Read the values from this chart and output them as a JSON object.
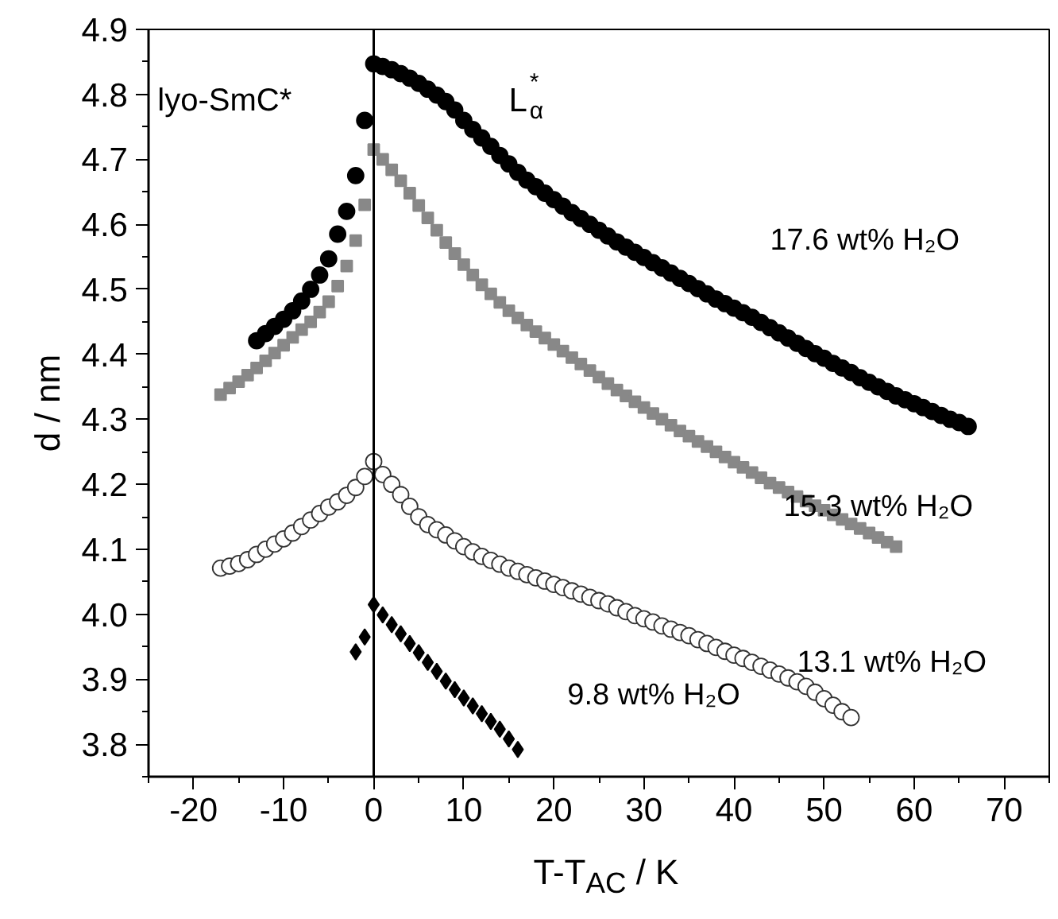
{
  "chart_data": {
    "type": "scatter",
    "xlabel": "T-T$_{AC}$ / K",
    "ylabel": "d / nm",
    "xlim": [
      -25,
      75
    ],
    "xticks": [
      -20,
      -10,
      0,
      10,
      20,
      30,
      40,
      50,
      60,
      70
    ],
    "ylim": [
      3.75,
      4.9
    ],
    "yticks": [
      3.8,
      3.9,
      {
        "value": 4.0,
        "label": "4.0"
      },
      4.1,
      4.2,
      4.3,
      4.4,
      4.5,
      4.6,
      4.7,
      4.8,
      4.9
    ],
    "grid": false,
    "ref_lines": [
      {
        "axis": "x",
        "value": 0,
        "color": "#000000"
      }
    ],
    "annotations": [
      "lyo-SmC*",
      "L$_{α}$$^{*}$"
    ],
    "series": [
      {
        "name": "17.6 wt% H₂O",
        "color": "#000000",
        "marker": "circle",
        "x": [
          -13,
          -12,
          -11,
          -10,
          -9,
          -8,
          -7,
          -6,
          -5,
          -4,
          -3,
          -2,
          -1,
          0,
          1,
          2,
          3,
          4,
          5,
          6,
          7,
          8,
          9,
          10,
          11,
          12,
          13,
          14,
          15,
          16,
          17,
          18,
          19,
          20,
          21,
          22,
          23,
          24,
          25,
          26,
          27,
          28,
          29,
          30,
          31,
          32,
          33,
          34,
          35,
          36,
          37,
          38,
          39,
          40,
          41,
          42,
          43,
          44,
          45,
          46,
          47,
          48,
          49,
          50,
          51,
          52,
          53,
          54,
          55,
          56,
          57,
          58,
          59,
          60,
          61,
          62,
          63,
          64,
          65,
          66
        ],
        "values": [
          4.421,
          4.432,
          4.443,
          4.454,
          4.467,
          4.482,
          4.5,
          4.522,
          4.547,
          4.585,
          4.62,
          4.675,
          4.76,
          4.847,
          4.843,
          4.838,
          4.832,
          4.825,
          4.817,
          4.808,
          4.799,
          4.789,
          4.776,
          4.76,
          4.746,
          4.733,
          4.72,
          4.706,
          4.693,
          4.68,
          4.668,
          4.658,
          4.648,
          4.638,
          4.628,
          4.618,
          4.609,
          4.6,
          4.591,
          4.582,
          4.573,
          4.565,
          4.557,
          4.549,
          4.541,
          4.533,
          4.525,
          4.517,
          4.509,
          4.501,
          4.493,
          4.485,
          4.478,
          4.471,
          4.464,
          4.457,
          4.449,
          4.441,
          4.433,
          4.425,
          4.417,
          4.409,
          4.401,
          4.394,
          4.386,
          4.379,
          4.372,
          4.364,
          4.357,
          4.35,
          4.343,
          4.336,
          4.33,
          4.324,
          4.318,
          4.312,
          4.306,
          4.3,
          4.295,
          4.289
        ]
      },
      {
        "name": "15.3 wt% H₂O",
        "color": "#888888",
        "marker": "square",
        "x": [
          -17,
          -16,
          -15,
          -14,
          -13,
          -12,
          -11,
          -10,
          -9,
          -8,
          -7,
          -6,
          -5,
          -4,
          -3,
          -2,
          -1,
          0,
          1,
          2,
          3,
          4,
          5,
          6,
          7,
          8,
          9,
          10,
          11,
          12,
          13,
          14,
          15,
          16,
          17,
          18,
          19,
          20,
          21,
          22,
          23,
          24,
          25,
          26,
          27,
          28,
          29,
          30,
          31,
          32,
          33,
          34,
          35,
          36,
          37,
          38,
          39,
          40,
          41,
          42,
          43,
          44,
          45,
          46,
          47,
          48,
          49,
          50,
          51,
          52,
          53,
          54,
          55,
          56,
          57,
          58
        ],
        "values": [
          4.338,
          4.348,
          4.358,
          4.368,
          4.379,
          4.39,
          4.402,
          4.414,
          4.426,
          4.438,
          4.45,
          4.465,
          4.481,
          4.505,
          4.536,
          4.575,
          4.63,
          4.715,
          4.7,
          4.684,
          4.667,
          4.648,
          4.629,
          4.61,
          4.591,
          4.572,
          4.555,
          4.538,
          4.522,
          4.507,
          4.493,
          4.48,
          4.467,
          4.456,
          4.445,
          4.435,
          4.425,
          4.415,
          4.405,
          4.395,
          4.385,
          4.375,
          4.365,
          4.355,
          4.345,
          4.336,
          4.327,
          4.318,
          4.309,
          4.3,
          4.291,
          4.282,
          4.274,
          4.266,
          4.258,
          4.25,
          4.242,
          4.234,
          4.226,
          4.218,
          4.21,
          4.202,
          4.195,
          4.188,
          4.181,
          4.174,
          4.167,
          4.16,
          4.153,
          4.146,
          4.139,
          4.132,
          4.125,
          4.118,
          4.111,
          4.104
        ]
      },
      {
        "name": "13.1 wt% H₂O",
        "color": "#ffffff",
        "marker": "circle",
        "x": [
          -17,
          -16,
          -15,
          -14,
          -13,
          -12,
          -11,
          -10,
          -9,
          -8,
          -7,
          -6,
          -5,
          -4,
          -3,
          -2,
          -1,
          0,
          1,
          2,
          3,
          4,
          5,
          6,
          7,
          8,
          9,
          10,
          11,
          12,
          13,
          14,
          15,
          16,
          17,
          18,
          19,
          20,
          21,
          22,
          23,
          24,
          25,
          26,
          27,
          28,
          29,
          30,
          31,
          32,
          33,
          34,
          35,
          36,
          37,
          38,
          39,
          40,
          41,
          42,
          43,
          44,
          45,
          46,
          47,
          48,
          49,
          50,
          51,
          52,
          53
        ],
        "values": [
          4.071,
          4.074,
          4.078,
          4.084,
          4.092,
          4.1,
          4.108,
          4.116,
          4.125,
          4.135,
          4.145,
          4.155,
          4.165,
          4.173,
          4.183,
          4.195,
          4.212,
          4.235,
          4.215,
          4.2,
          4.184,
          4.166,
          4.15,
          4.138,
          4.13,
          4.122,
          4.113,
          4.104,
          4.096,
          4.089,
          4.083,
          4.077,
          4.071,
          4.066,
          4.061,
          4.056,
          4.051,
          4.046,
          4.041,
          4.036,
          4.031,
          4.026,
          4.021,
          4.016,
          4.01,
          4.004,
          3.998,
          3.993,
          3.988,
          3.982,
          3.977,
          3.972,
          3.967,
          3.961,
          3.955,
          3.949,
          3.943,
          3.937,
          3.932,
          3.926,
          3.92,
          3.914,
          3.908,
          3.902,
          3.896,
          3.889,
          3.88,
          3.87,
          3.86,
          3.85,
          3.841
        ]
      },
      {
        "name": "9.8 wt% H₂O",
        "color": "#000000",
        "marker": "diamond",
        "x": [
          -2,
          -1,
          0,
          1,
          2,
          3,
          4,
          5,
          6,
          7,
          8,
          9,
          10,
          11,
          12,
          13,
          14,
          15,
          16
        ],
        "values": [
          3.942,
          3.965,
          4.015,
          3.999,
          3.984,
          3.97,
          3.955,
          3.941,
          3.926,
          3.912,
          3.897,
          3.884,
          3.871,
          3.859,
          3.847,
          3.835,
          3.823,
          3.808,
          3.792
        ]
      }
    ]
  }
}
